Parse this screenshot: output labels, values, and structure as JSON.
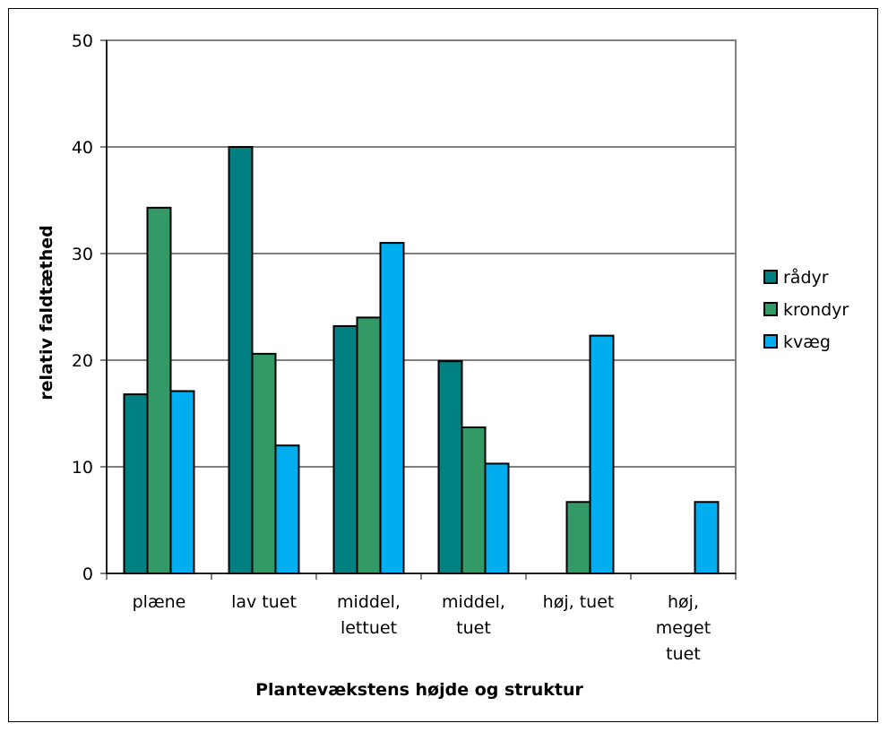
{
  "chart_data": {
    "type": "bar",
    "title": "",
    "xlabel": "Plantevækstens højde og struktur",
    "ylabel": "relativ faldtæthed",
    "ylim": [
      0,
      50
    ],
    "yticks": [
      0,
      10,
      20,
      30,
      40,
      50
    ],
    "grid": true,
    "legend_position": "right",
    "categories": [
      [
        "plæne"
      ],
      [
        "lav tuet"
      ],
      [
        "middel,",
        "lettuet"
      ],
      [
        "middel,",
        "tuet"
      ],
      [
        "høj, tuet"
      ],
      [
        "høj,",
        "meget",
        "tuet"
      ]
    ],
    "series": [
      {
        "name": "rådyr",
        "color": "#008080",
        "values": [
          16.8,
          40.0,
          23.2,
          19.9,
          0,
          0
        ]
      },
      {
        "name": "krondyr",
        "color": "#339966",
        "values": [
          34.3,
          20.6,
          24.0,
          13.7,
          6.7,
          0
        ]
      },
      {
        "name": "kvæg",
        "color": "#00AEEF",
        "values": [
          17.1,
          12.0,
          31.0,
          10.3,
          22.3,
          6.7
        ]
      }
    ]
  }
}
